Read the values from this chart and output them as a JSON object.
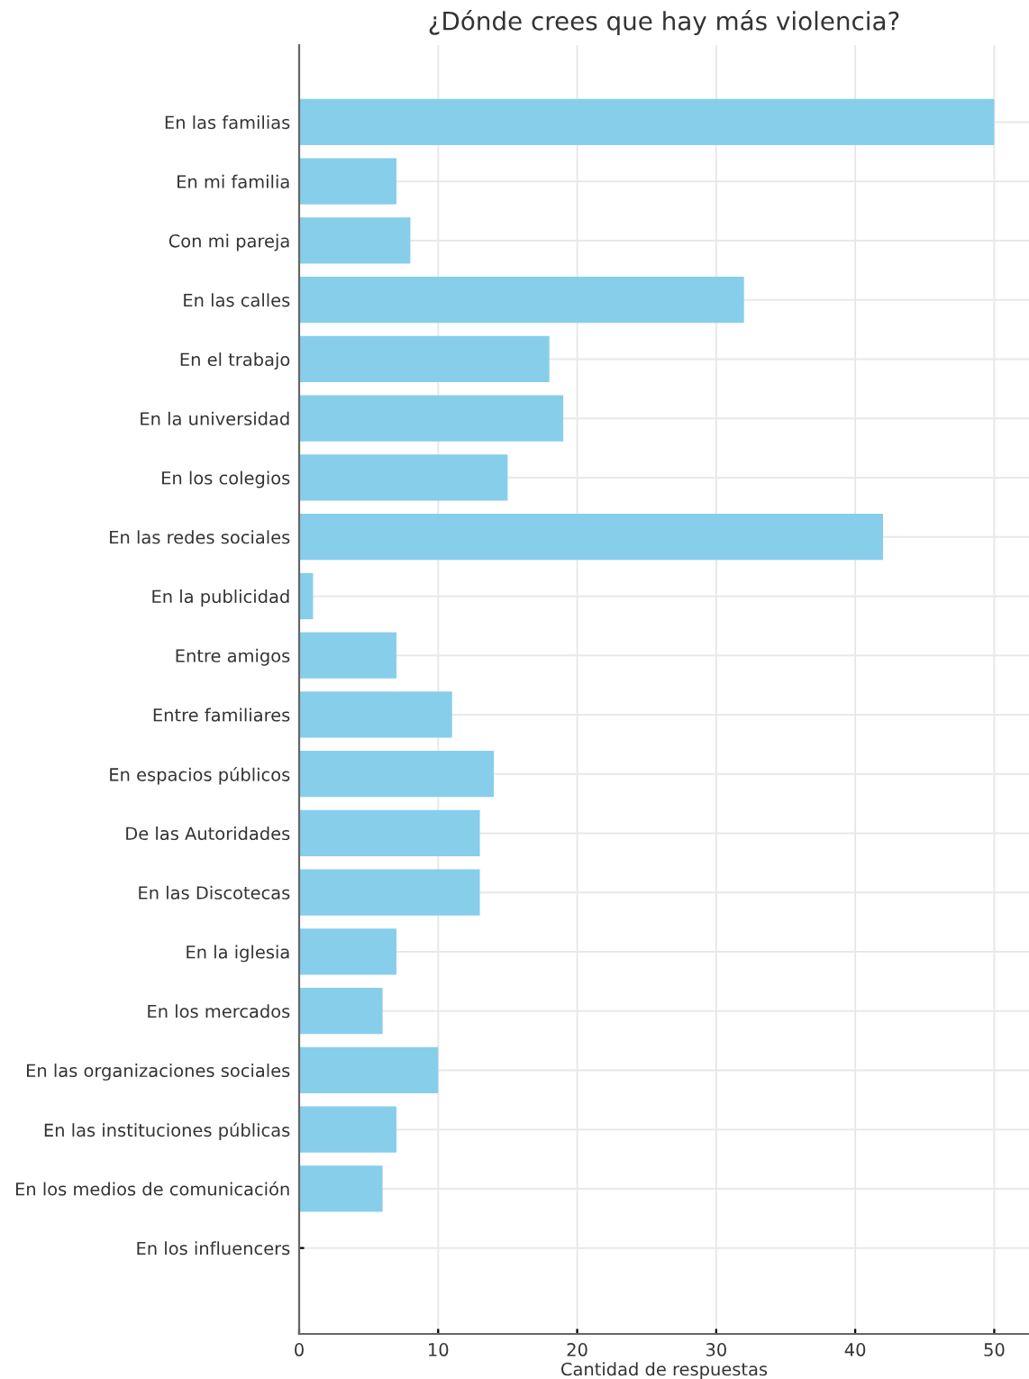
{
  "chart_data": {
    "type": "bar",
    "orientation": "horizontal",
    "title": "¿Dónde crees que hay más violencia?",
    "xlabel": "Cantidad de respuestas",
    "categories": [
      "En las familias",
      "En mi familia",
      "Con mi pareja",
      "En las calles",
      "En el trabajo",
      "En la universidad",
      "En los colegios",
      "En las redes sociales",
      "En la publicidad",
      "Entre amigos",
      "Entre familiares",
      "En espacios públicos",
      "De las Autoridades",
      "En las Discotecas",
      "En la iglesia",
      "En los mercados",
      "En las organizaciones sociales",
      "En las instituciones públicas",
      "En los medios de comunicación",
      "En los influencers"
    ],
    "values": [
      50,
      7,
      8,
      32,
      18,
      19,
      15,
      42,
      1,
      7,
      11,
      14,
      13,
      13,
      7,
      6,
      10,
      7,
      6,
      0
    ],
    "color": "#87ceeb",
    "xlim": [
      0,
      52.5
    ],
    "xticks": [
      0,
      10,
      20,
      30,
      40,
      50
    ],
    "grid": true
  }
}
